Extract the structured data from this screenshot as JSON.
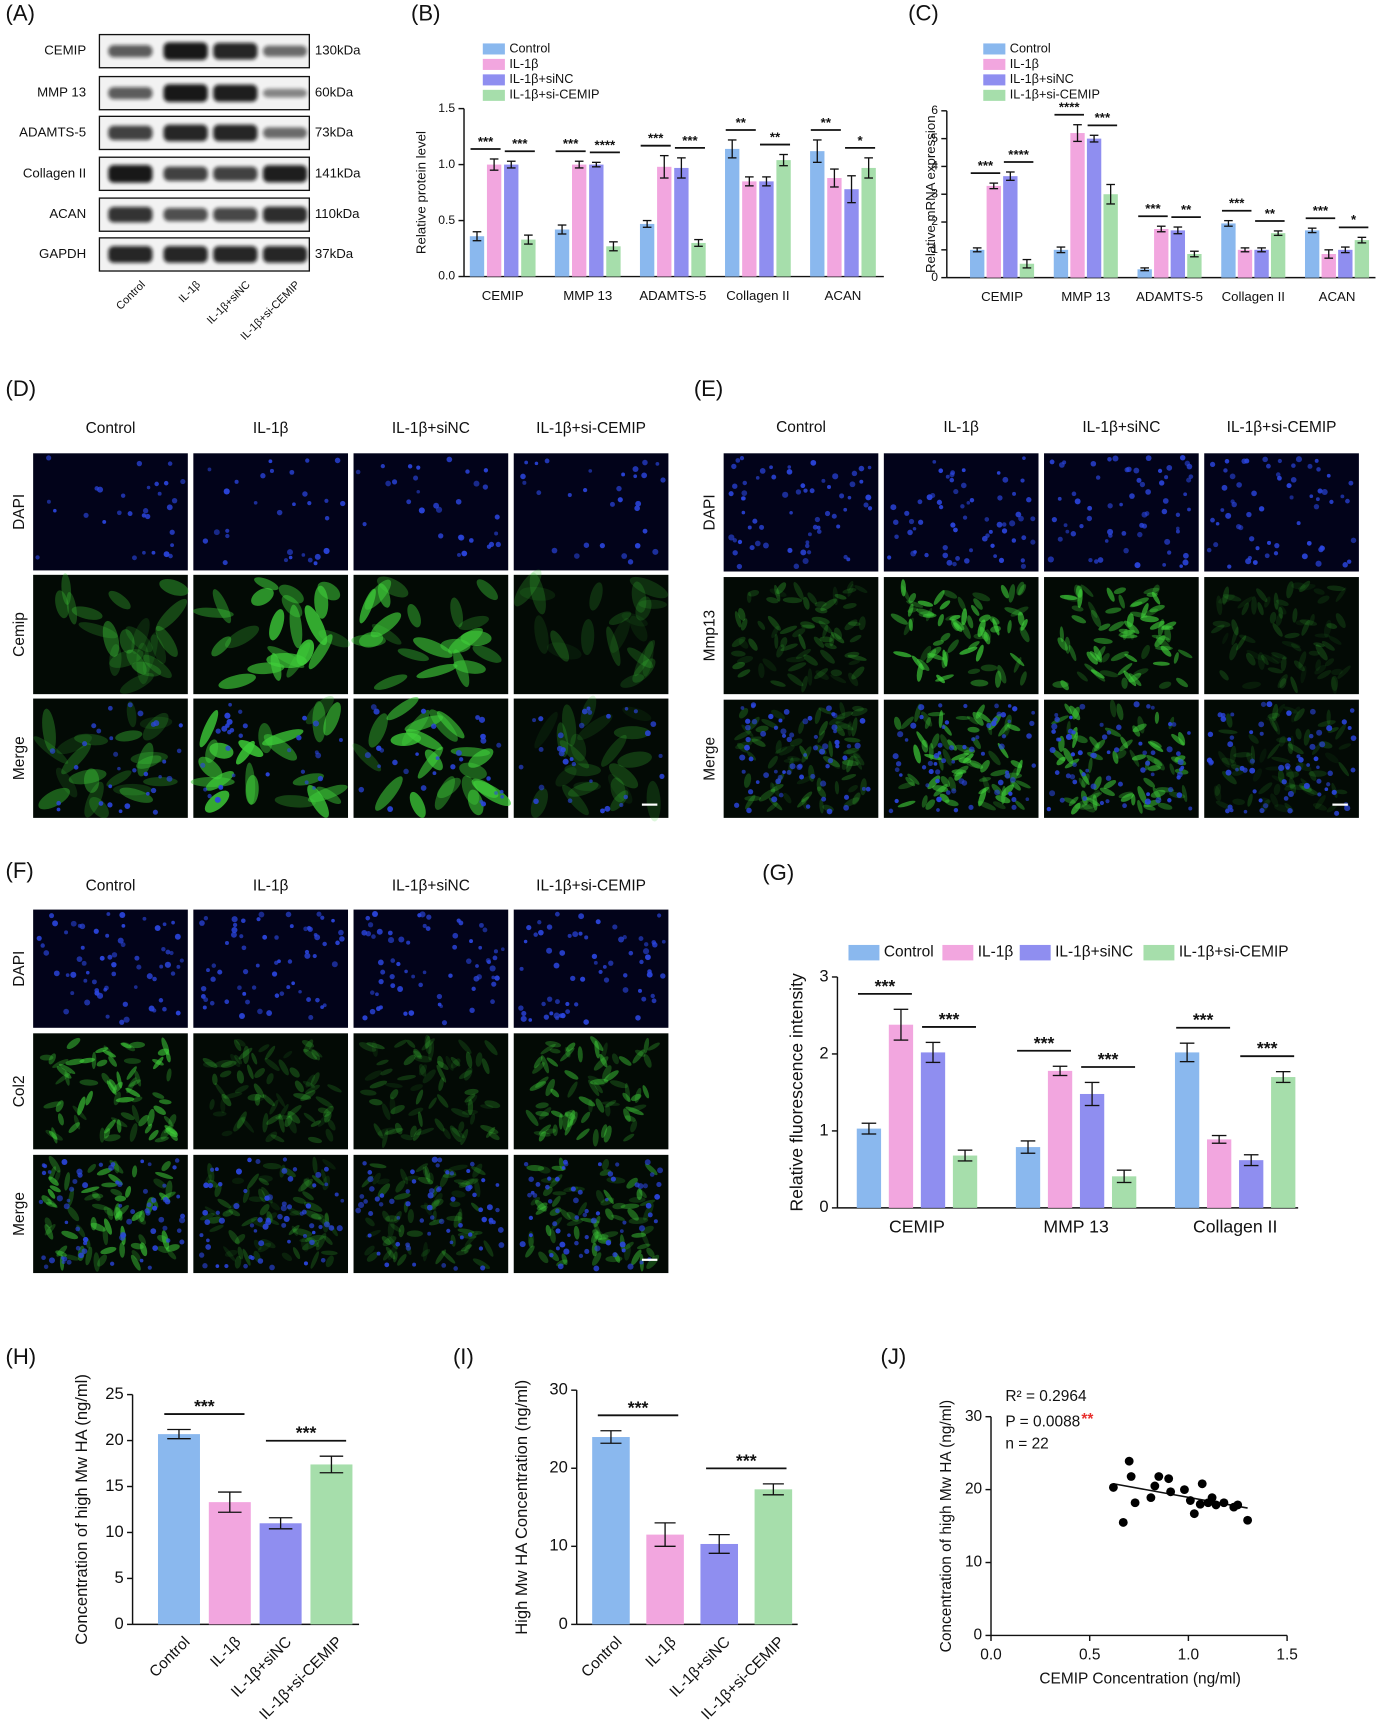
{
  "western_blot": {
    "panel_label": "(A)",
    "rows": [
      {
        "protein": "CEMIP",
        "size": "130kDa"
      },
      {
        "protein": "MMP 13",
        "size": "60kDa"
      },
      {
        "protein": "ADAMTS-5",
        "size": "73kDa"
      },
      {
        "protein": "Collagen II",
        "size": "141kDa"
      },
      {
        "protein": "ACAN",
        "size": "110kDa"
      },
      {
        "protein": "GAPDH",
        "size": "37kDa"
      }
    ],
    "lanes": [
      "Control",
      "IL-1β",
      "IL-1β+siNC",
      "IL-1β+si-CEMIP"
    ]
  },
  "micrographs": [
    {
      "panel_label": "(D)",
      "columns": [
        "Control",
        "IL-1β",
        "IL-1β+siNC",
        "IL-1β+si-CEMIP"
      ],
      "rows": [
        "DAPI",
        "Cemip",
        "Merge"
      ]
    },
    {
      "panel_label": "(E)",
      "columns": [
        "Control",
        "IL-1β",
        "IL-1β+siNC",
        "IL-1β+si-CEMIP"
      ],
      "rows": [
        "DAPI",
        "Mmp13",
        "Merge"
      ]
    },
    {
      "panel_label": "(F)",
      "columns": [
        "Control",
        "IL-1β",
        "IL-1β+siNC",
        "IL-1β+si-CEMIP"
      ],
      "rows": [
        "DAPI",
        "Col2",
        "Merge"
      ]
    }
  ],
  "chart_data": [
    {
      "panel_label": "(B)",
      "type": "bar",
      "ylabel": "Relative protein level",
      "legend": "top-left",
      "categories": [
        "CEMIP",
        "MMP 13",
        "ADAMTS-5",
        "Collagen II",
        "ACAN"
      ],
      "series": [
        {
          "name": "Control",
          "color": "#8ab8ee",
          "values": [
            0.36,
            0.42,
            0.47,
            1.14,
            1.12
          ],
          "errors": [
            0.04,
            0.04,
            0.03,
            0.08,
            0.1
          ]
        },
        {
          "name": "IL-1β",
          "color": "#f2a6df",
          "values": [
            1.0,
            1.0,
            0.98,
            0.85,
            0.88
          ],
          "errors": [
            0.05,
            0.03,
            0.1,
            0.04,
            0.08
          ]
        },
        {
          "name": "IL-1β+siNC",
          "color": "#8f8ef0",
          "values": [
            1.0,
            1.0,
            0.97,
            0.85,
            0.78
          ],
          "errors": [
            0.03,
            0.02,
            0.09,
            0.04,
            0.12
          ]
        },
        {
          "name": "IL-1β+si-CEMIP",
          "color": "#a6deab",
          "values": [
            0.33,
            0.27,
            0.3,
            1.04,
            0.97
          ],
          "errors": [
            0.04,
            0.04,
            0.03,
            0.05,
            0.09
          ]
        }
      ],
      "significance": [
        [
          "***",
          "***"
        ],
        [
          "***",
          "****"
        ],
        [
          "***",
          "***"
        ],
        [
          "**",
          "**"
        ],
        [
          "**",
          "*"
        ]
      ],
      "ylim": [
        0,
        1.5
      ],
      "yticks": [
        {
          "value": 0,
          "label": "0.0"
        },
        0.5,
        {
          "value": 1,
          "label": "1.0"
        },
        1.5
      ]
    },
    {
      "panel_label": "(C)",
      "type": "bar",
      "ylabel": "Relative mRNA expression",
      "legend": "top-left",
      "categories": [
        "CEMIP",
        "MMP 13",
        "ADAMTS-5",
        "Collagen II",
        "ACAN"
      ],
      "series": [
        {
          "name": "Control",
          "color": "#8ab8ee",
          "values": [
            1.0,
            1.0,
            0.3,
            1.95,
            1.7
          ],
          "errors": [
            0.07,
            0.1,
            0.05,
            0.1,
            0.08
          ]
        },
        {
          "name": "IL-1β",
          "color": "#f2a6df",
          "values": [
            3.3,
            5.2,
            1.75,
            1.0,
            0.85
          ],
          "errors": [
            0.1,
            0.3,
            0.1,
            0.07,
            0.15
          ]
        },
        {
          "name": "IL-1β+siNC",
          "color": "#8f8ef0",
          "values": [
            3.65,
            5.0,
            1.7,
            1.0,
            1.0
          ],
          "errors": [
            0.15,
            0.12,
            0.12,
            0.07,
            0.1
          ]
        },
        {
          "name": "IL-1β+si-CEMIP",
          "color": "#a6deab",
          "values": [
            0.5,
            3.0,
            0.85,
            1.6,
            1.35
          ],
          "errors": [
            0.15,
            0.35,
            0.1,
            0.08,
            0.1
          ]
        }
      ],
      "significance": [
        [
          "***",
          "****"
        ],
        [
          "****",
          "***"
        ],
        [
          "***",
          "**"
        ],
        [
          "***",
          "**"
        ],
        [
          "***",
          "*"
        ]
      ],
      "ylim": [
        0,
        6
      ],
      "yticks": [
        0,
        1,
        2,
        3,
        4,
        5,
        6
      ]
    },
    {
      "panel_label": "(G)",
      "type": "bar",
      "ylabel": "Relative fluorescence intensity",
      "legend": "top",
      "categories": [
        "CEMIP",
        "MMP 13",
        "Collagen II"
      ],
      "series": [
        {
          "name": "Control",
          "color": "#8ab8ee",
          "values": [
            1.03,
            0.79,
            2.02
          ],
          "errors": [
            0.07,
            0.08,
            0.12
          ]
        },
        {
          "name": "IL-1β",
          "color": "#f2a6df",
          "values": [
            2.38,
            1.78,
            0.89
          ],
          "errors": [
            0.2,
            0.06,
            0.05
          ]
        },
        {
          "name": "IL-1β+siNC",
          "color": "#8f8ef0",
          "values": [
            2.02,
            1.48,
            0.62
          ],
          "errors": [
            0.13,
            0.15,
            0.07
          ]
        },
        {
          "name": "IL-1β+si-CEMIP",
          "color": "#a6deab",
          "values": [
            0.68,
            0.41,
            1.7
          ],
          "errors": [
            0.07,
            0.08,
            0.07
          ]
        }
      ],
      "significance": [
        [
          "***",
          "***"
        ],
        [
          "***",
          "***"
        ],
        [
          "***",
          "***"
        ]
      ],
      "ylim": [
        0,
        3
      ],
      "yticks": [
        0,
        1,
        2,
        3
      ]
    },
    {
      "panel_label": "(H)",
      "type": "bar",
      "ylabel": "Concentration of high Mw HA (ng/ml)",
      "categories": [
        "Control",
        "IL-1β",
        "IL-1β+siNC",
        "IL-1β+si-CEMIP"
      ],
      "values": [
        20.7,
        13.3,
        11.0,
        17.4
      ],
      "errors": [
        0.5,
        1.1,
        0.6,
        0.9
      ],
      "colors": [
        "#8ab8ee",
        "#f2a6df",
        "#8f8ef0",
        "#a6deab"
      ],
      "significance": [
        "***",
        "***"
      ],
      "ylim": [
        0,
        25
      ],
      "yticks": [
        0,
        5,
        10,
        15,
        20,
        25
      ]
    },
    {
      "panel_label": "(I)",
      "type": "bar",
      "ylabel": "High Mw HA Concentration (ng/ml)",
      "categories": [
        "Control",
        "IL-1β",
        "IL-1β+siNC",
        "IL-1β+si-CEMIP"
      ],
      "values": [
        24.0,
        11.5,
        10.3,
        17.3
      ],
      "errors": [
        0.8,
        1.5,
        1.2,
        0.7
      ],
      "colors": [
        "#8ab8ee",
        "#f2a6df",
        "#8f8ef0",
        "#a6deab"
      ],
      "significance": [
        "***",
        "***"
      ],
      "ylim": [
        0,
        30
      ],
      "yticks": [
        0,
        10,
        20,
        30
      ]
    },
    {
      "panel_label": "(J)",
      "type": "scatter",
      "xlabel": "CEMIP Concentration (ng/ml)",
      "ylabel": "Concentration of high Mw HA (ng/ml)",
      "annotations": [
        "R² = 0.2964",
        "P = 0.0088",
        "**",
        "n = 22"
      ],
      "x": [
        0.62,
        0.67,
        0.7,
        0.71,
        0.73,
        0.81,
        0.83,
        0.85,
        0.9,
        0.91,
        0.98,
        1.01,
        1.03,
        1.06,
        1.07,
        1.1,
        1.12,
        1.14,
        1.18,
        1.23,
        1.25,
        1.3
      ],
      "y": [
        20.3,
        15.5,
        23.9,
        21.8,
        18.2,
        18.9,
        20.5,
        21.8,
        21.5,
        19.7,
        20.0,
        18.5,
        16.7,
        18.0,
        20.8,
        18.2,
        18.9,
        17.9,
        18.2,
        17.6,
        17.9,
        15.8
      ],
      "color": "#000000",
      "xlim": [
        0,
        1.5
      ],
      "xticks": [
        {
          "value": 0,
          "label": "0.0"
        },
        0.5,
        {
          "value": 1,
          "label": "1.0"
        },
        1.5
      ],
      "ylim": [
        0,
        30
      ],
      "yticks": [
        0,
        10,
        20,
        30
      ]
    }
  ]
}
